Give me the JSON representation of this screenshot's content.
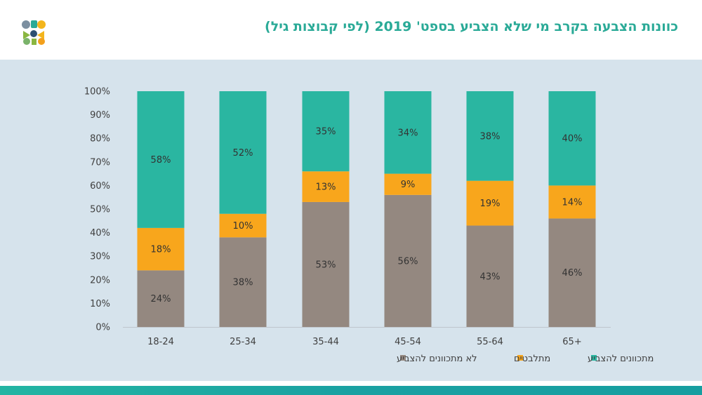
{
  "title": "כוונות הצבעה בקרב מי שלא הצביע בספט' 2019 (לפי קבוצות גיל)",
  "colors": {
    "title": "#2aaa97",
    "panel": "#d6e3ec",
    "not_intending": "#948880",
    "undecided": "#f8a61c",
    "intending": "#2ab6a1"
  },
  "chart_data": {
    "type": "bar",
    "stacked": true,
    "title": "כוונות הצבעה בקרב מי שלא הצביע בספט' 2019 (לפי קבוצות גיל)",
    "categories": [
      "18-24",
      "25-34",
      "35-44",
      "45-54",
      "55-64",
      "65+"
    ],
    "series": [
      {
        "name": "לא מתכוונים להצביע",
        "color": "#948880",
        "values": [
          24,
          38,
          53,
          56,
          43,
          46
        ],
        "labels": [
          "24%",
          "38%",
          "53%",
          "56%",
          "43%",
          "46%"
        ]
      },
      {
        "name": "מתלבטים",
        "color": "#f8a61c",
        "values": [
          18,
          10,
          13,
          9,
          19,
          14
        ],
        "labels": [
          "18%",
          "10%",
          "13%",
          "9%",
          "19%",
          "14%"
        ]
      },
      {
        "name": "מתכוונים להצביע",
        "color": "#2ab6a1",
        "values": [
          58,
          52,
          35,
          34,
          38,
          40
        ],
        "labels": [
          "58%",
          "52%",
          "35%",
          "34%",
          "38%",
          "40%"
        ]
      }
    ],
    "y_ticks": [
      "0%",
      "10%",
      "20%",
      "30%",
      "40%",
      "50%",
      "60%",
      "70%",
      "80%",
      "90%",
      "100%"
    ],
    "ylim": [
      0,
      100
    ],
    "xlabel": "",
    "ylabel": "",
    "legend_position": "bottom"
  }
}
